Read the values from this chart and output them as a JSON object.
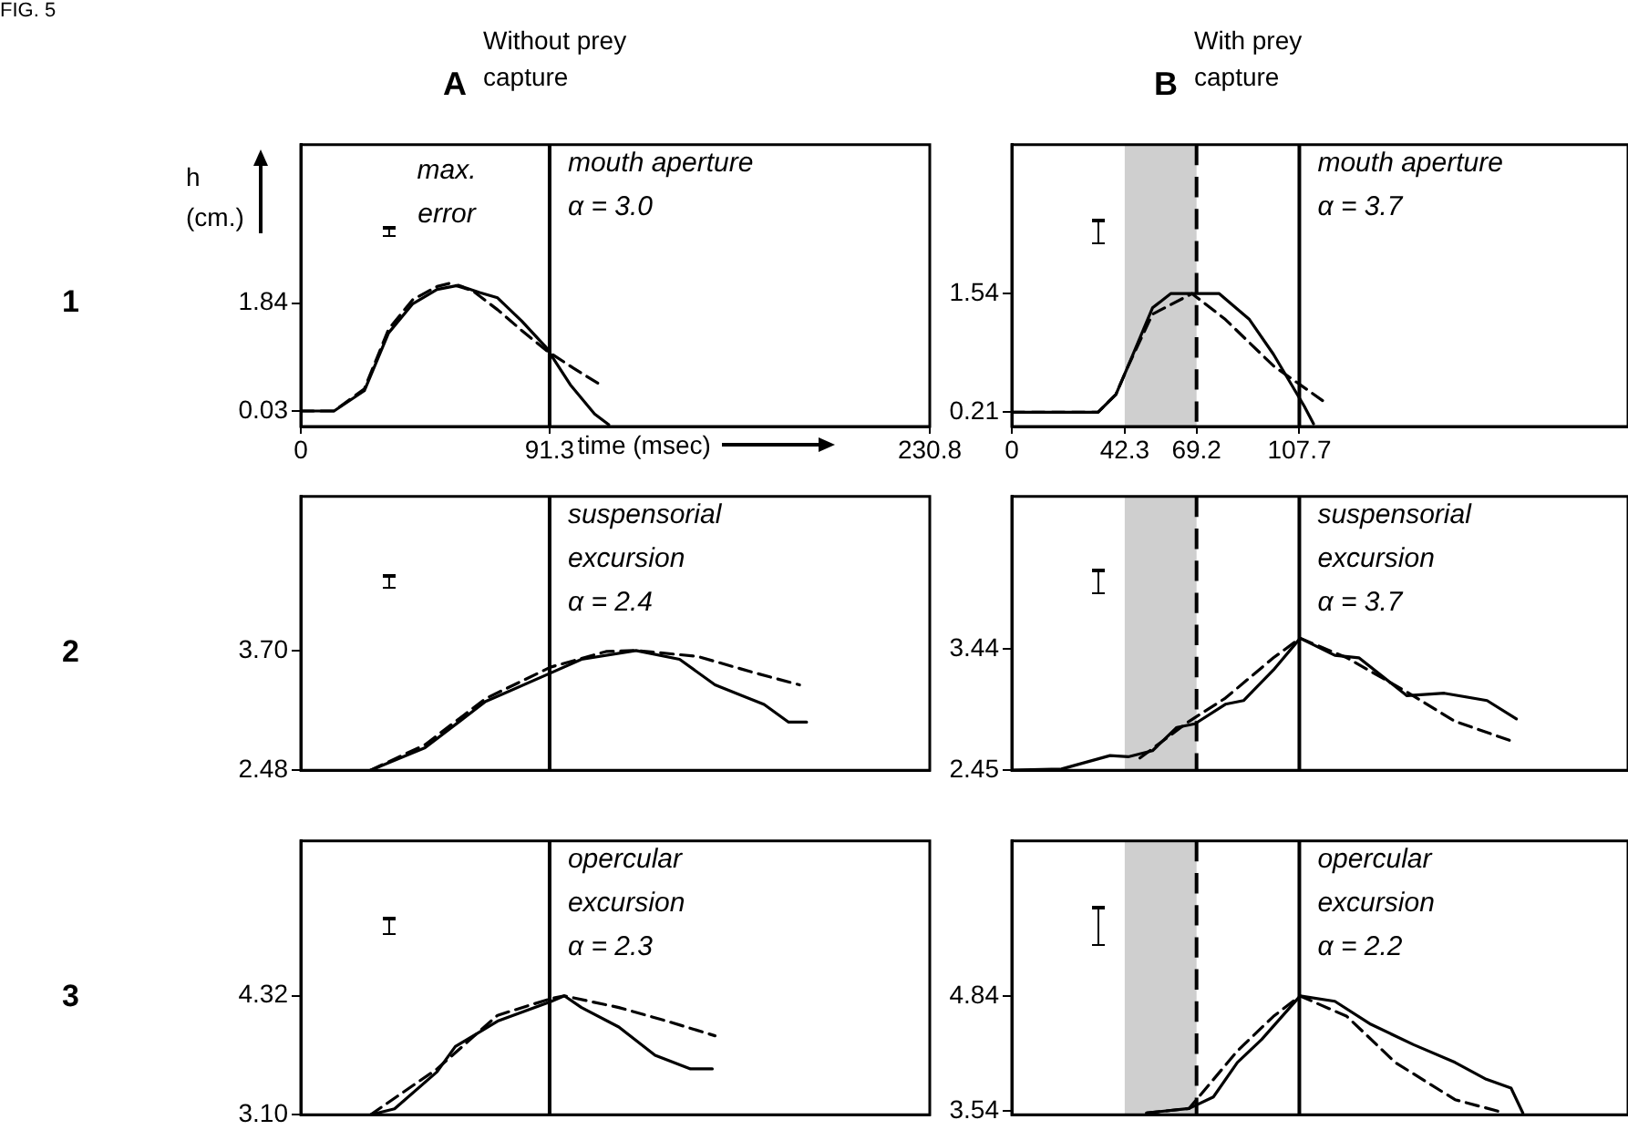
{
  "chart_data": [
    {
      "type": "line",
      "title": "A",
      "subtitle": "Without prey capture",
      "xlabel": "time (msec)",
      "ylabel": "h (cm.)",
      "annotations": [
        "FIG. 5",
        "1",
        "max. error",
        "mouth aperture",
        "α = 3.0"
      ],
      "xlim": [
        0,
        230.8
      ],
      "xticks": [
        0,
        91.3,
        230.8
      ],
      "ylim": [
        -0.23,
        4.5
      ],
      "yticks": [
        0.03,
        1.84
      ],
      "grid": false,
      "legend": false,
      "marker": "none",
      "ref_lines": [
        {
          "axis": "x",
          "value": 91.3,
          "color": "#000000",
          "line_style": "solid"
        }
      ],
      "series": [
        {
          "color": "#000000",
          "line_style": "solid",
          "x": [
            0,
            12.2,
            23.3,
            32.2,
            41.1,
            50,
            57.8,
            65.6,
            72.2,
            81.1,
            90,
            98.9,
            107.8,
            113
          ],
          "values": [
            0.03,
            0.03,
            0.37,
            1.34,
            1.83,
            2.07,
            2.14,
            2.02,
            1.93,
            1.54,
            1.1,
            0.47,
            -0.02,
            -0.2
          ]
        },
        {
          "color": "#000000",
          "line_style": "dashed",
          "x": [
            0,
            12.2,
            23.3,
            32.2,
            41.1,
            50,
            54.4,
            63,
            72.2,
            81.1,
            90,
            100,
            110
          ],
          "values": [
            0.03,
            0.03,
            0.4,
            1.4,
            1.9,
            2.12,
            2.17,
            2.05,
            1.73,
            1.38,
            1.05,
            0.75,
            0.47
          ]
        }
      ]
    },
    {
      "type": "line",
      "title": "B",
      "subtitle": "With prey capture",
      "annotations": [
        "mouth aperture",
        "α = 3.7"
      ],
      "xlim": [
        0,
        230.8
      ],
      "xticks": [
        0,
        42.3,
        69.2,
        107.7
      ],
      "ylim": [
        0.05,
        3.21
      ],
      "yticks": [
        0.21,
        1.54
      ],
      "grid": false,
      "legend": false,
      "marker": "none",
      "ref_lines": [
        {
          "axis": "x",
          "value": 69.2,
          "color": "#000000",
          "line_style": "dashed"
        },
        {
          "axis": "x",
          "value": 107.7,
          "color": "#000000",
          "line_style": "solid"
        }
      ],
      "bands": [
        {
          "axis": "x",
          "from": 42.3,
          "to": 69.2,
          "color": "#cfcfcf"
        }
      ],
      "series": [
        {
          "color": "#000000",
          "line_style": "solid",
          "x": [
            0,
            32.3,
            39,
            43.6,
            52.7,
            59.5,
            77.7,
            89,
            98,
            109.5,
            113
          ],
          "values": [
            0.21,
            0.21,
            0.41,
            0.73,
            1.38,
            1.54,
            1.54,
            1.25,
            0.86,
            0.28,
            0.08
          ]
        },
        {
          "color": "#000000",
          "line_style": "dashed",
          "x": [
            0,
            32.3,
            39,
            43.6,
            52.7,
            67.5,
            80,
            98,
            116.4
          ],
          "values": [
            0.21,
            0.21,
            0.41,
            0.73,
            1.31,
            1.54,
            1.25,
            0.73,
            0.34
          ]
        }
      ]
    },
    {
      "type": "line",
      "annotations": [
        "2",
        "suspensorial excursion",
        "α = 2.4"
      ],
      "xlim": [
        0,
        230.8
      ],
      "ylim": [
        2.48,
        5.27
      ],
      "yticks": [
        2.48,
        {
          "value": 3.7,
          "label": "3.70"
        }
      ],
      "tick_labels": "y",
      "grid": false,
      "legend": false,
      "marker": "none",
      "ref_lines": [
        {
          "axis": "x",
          "value": 91.3,
          "color": "#000000",
          "line_style": "solid"
        }
      ],
      "series": [
        {
          "color": "#000000",
          "line_style": "solid",
          "x": [
            25.6,
            45.6,
            67.8,
            91.6,
            103,
            123,
            139,
            152,
            170,
            179,
            185.6
          ],
          "values": [
            2.48,
            2.71,
            3.18,
            3.47,
            3.61,
            3.7,
            3.61,
            3.35,
            3.15,
            2.97,
            2.97
          ]
        },
        {
          "color": "#000000",
          "line_style": "dashed",
          "x": [
            25.6,
            45.6,
            67.8,
            91.6,
            112,
            123,
            145.6,
            165.6,
            183
          ],
          "values": [
            2.48,
            2.74,
            3.21,
            3.53,
            3.69,
            3.7,
            3.64,
            3.48,
            3.35
          ]
        }
      ]
    },
    {
      "type": "line",
      "annotations": [
        "suspensorial excursion",
        "α = 3.7"
      ],
      "xlim": [
        0,
        230.8
      ],
      "ylim": [
        2.45,
        4.69
      ],
      "yticks": [
        2.45,
        3.44
      ],
      "tick_labels": "y",
      "grid": false,
      "legend": false,
      "marker": "none",
      "ref_lines": [
        {
          "axis": "x",
          "value": 69.2,
          "color": "#000000",
          "line_style": "dashed"
        },
        {
          "axis": "x",
          "value": 107.7,
          "color": "#000000",
          "line_style": "solid"
        }
      ],
      "bands": [
        {
          "axis": "x",
          "from": 42.3,
          "to": 69.2,
          "color": "#cfcfcf"
        }
      ],
      "series": [
        {
          "color": "#000000",
          "line_style": "solid",
          "x": [
            0,
            18.6,
            36.8,
            43.6,
            52.7,
            61.8,
            68.6,
            80,
            86.8,
            98,
            108,
            121,
            130,
            148,
            162,
            178,
            189
          ],
          "values": [
            2.45,
            2.46,
            2.57,
            2.56,
            2.61,
            2.8,
            2.83,
            2.99,
            3.02,
            3.27,
            3.53,
            3.39,
            3.37,
            3.06,
            3.08,
            3.02,
            2.87
          ]
        },
        {
          "color": "#000000",
          "line_style": "dashed",
          "x": [
            48,
            66.4,
            80,
            98,
            108,
            125.5,
            148,
            166,
            187
          ],
          "values": [
            2.55,
            2.85,
            3.04,
            3.37,
            3.53,
            3.37,
            3.09,
            2.85,
            2.69
          ]
        }
      ]
    },
    {
      "type": "line",
      "annotations": [
        "3",
        "opercular excursion",
        "α = 2.3"
      ],
      "xlim": [
        0,
        230.8
      ],
      "ylim": [
        3.1,
        5.91
      ],
      "yticks": [
        {
          "value": 3.1,
          "label": "3.10"
        },
        4.32
      ],
      "tick_labels": "y",
      "grid": false,
      "legend": false,
      "marker": "none",
      "ref_lines": [
        {
          "axis": "x",
          "value": 91.3,
          "color": "#000000",
          "line_style": "solid"
        }
      ],
      "series": [
        {
          "color": "#000000",
          "line_style": "solid",
          "x": [
            25.6,
            34.4,
            50,
            56.7,
            72.2,
            91.6,
            96.7,
            103,
            116.7,
            130,
            143,
            151
          ],
          "values": [
            3.1,
            3.16,
            3.54,
            3.8,
            4.06,
            4.26,
            4.32,
            4.2,
            4.0,
            3.71,
            3.57,
            3.57
          ]
        },
        {
          "color": "#000000",
          "line_style": "dashed",
          "x": [
            25.6,
            50,
            72.2,
            91.6,
            96.7,
            116.7,
            134.4,
            152
          ],
          "values": [
            3.1,
            3.57,
            4.12,
            4.29,
            4.32,
            4.2,
            4.06,
            3.91
          ]
        }
      ]
    },
    {
      "type": "line",
      "annotations": [
        "opercular excursion",
        "α = 2.2"
      ],
      "xlim": [
        0,
        230.8
      ],
      "ylim": [
        3.5,
        6.59
      ],
      "yticks": [
        3.54,
        4.84
      ],
      "tick_labels": "y",
      "grid": false,
      "legend": false,
      "marker": "none",
      "ref_lines": [
        {
          "axis": "x",
          "value": 69.2,
          "color": "#000000",
          "line_style": "dashed"
        },
        {
          "axis": "x",
          "value": 107.7,
          "color": "#000000",
          "line_style": "solid"
        }
      ],
      "bands": [
        {
          "axis": "x",
          "from": 42.3,
          "to": 69.2,
          "color": "#cfcfcf"
        }
      ],
      "series": [
        {
          "color": "#000000",
          "line_style": "solid",
          "x": [
            50.5,
            66.4,
            75.5,
            84.5,
            93.6,
            108,
            121,
            134.5,
            150.5,
            166,
            177.7,
            187,
            191.4
          ],
          "values": [
            3.52,
            3.57,
            3.7,
            4.09,
            4.35,
            4.84,
            4.78,
            4.52,
            4.29,
            4.09,
            3.9,
            3.8,
            3.52
          ]
        },
        {
          "color": "#000000",
          "line_style": "dashed",
          "x": [
            50.5,
            66.4,
            84.5,
            98,
            108,
            125.5,
            143.6,
            166,
            184.5
          ],
          "values": [
            3.52,
            3.57,
            4.22,
            4.61,
            4.84,
            4.61,
            4.09,
            3.67,
            3.52
          ]
        }
      ]
    }
  ]
}
